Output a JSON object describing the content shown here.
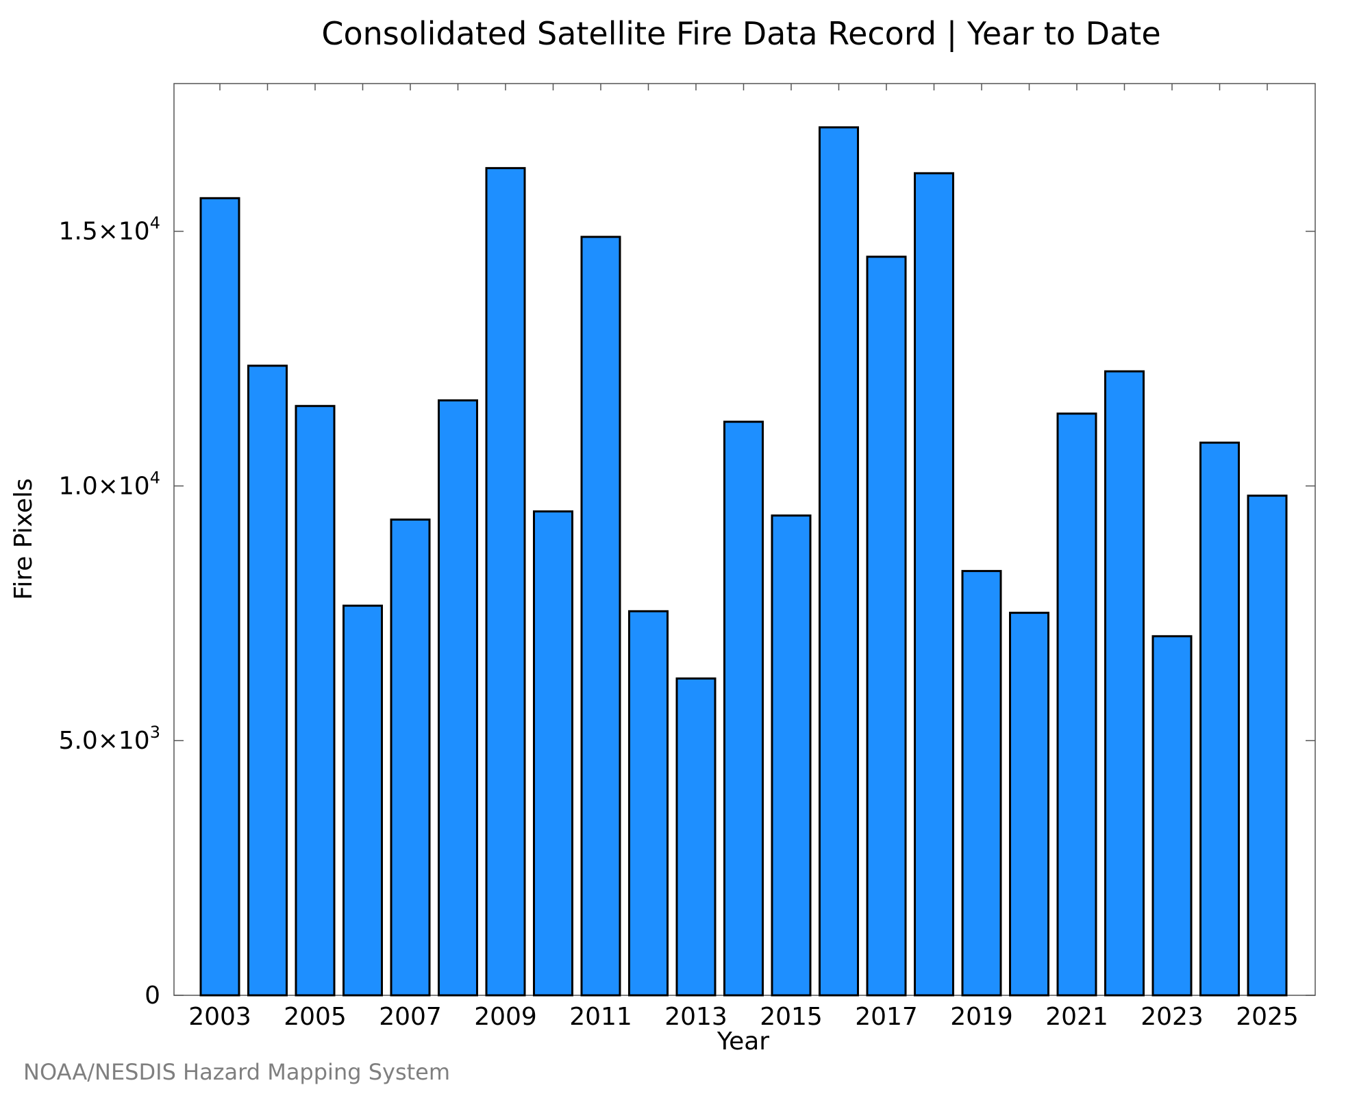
{
  "colors": {
    "bar_fill": "#1e8fff",
    "bar_stroke": "#000000",
    "credit_text": "#7f7f7f"
  },
  "credit": "NOAA/NESDIS Hazard Mapping System",
  "chart_data": {
    "type": "bar",
    "title": "Consolidated Satellite Fire Data Record | Year to Date",
    "xlabel": "Year",
    "ylabel": "Fire Pixels",
    "ylim": [
      0,
      17900
    ],
    "grid": false,
    "categories": [
      2003,
      2004,
      2005,
      2006,
      2007,
      2008,
      2009,
      2010,
      2011,
      2012,
      2013,
      2014,
      2015,
      2016,
      2017,
      2018,
      2019,
      2020,
      2021,
      2022,
      2023,
      2024,
      2025
    ],
    "values": [
      15650,
      12360,
      11570,
      7650,
      9340,
      11680,
      16240,
      9500,
      14890,
      7540,
      6220,
      11260,
      9420,
      17040,
      14500,
      16140,
      8330,
      7510,
      11420,
      12250,
      7050,
      10850,
      9810
    ],
    "x_tick_labels": [
      "2003",
      "2005",
      "2007",
      "2009",
      "2011",
      "2013",
      "2015",
      "2017",
      "2019",
      "2021",
      "2023",
      "2025"
    ],
    "y_ticks": [
      {
        "value": 0,
        "mantissa": "0",
        "exponent": ""
      },
      {
        "value": 5000,
        "mantissa": "5.0×10",
        "exponent": "3"
      },
      {
        "value": 10000,
        "mantissa": "1.0×10",
        "exponent": "4"
      },
      {
        "value": 15000,
        "mantissa": "1.5×10",
        "exponent": "4"
      }
    ]
  }
}
